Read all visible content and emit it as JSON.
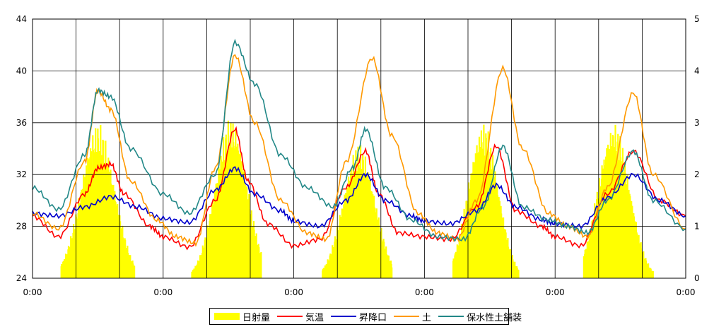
{
  "chart_data": {
    "type": "line",
    "x_ticks": [
      "0:00",
      "0:00",
      "0:00",
      "0:00",
      "0:00",
      "0:00"
    ],
    "y_left": {
      "ticks": [
        24,
        28,
        32,
        36,
        40,
        44
      ],
      "lim": [
        24,
        44
      ]
    },
    "y_right": {
      "ticks": [
        0,
        1,
        2,
        3,
        4,
        5
      ],
      "lim": [
        0,
        5
      ]
    },
    "grid": true,
    "legend_position": "bottom",
    "series": [
      {
        "name": "日射量",
        "kind": "bar",
        "axis": "right",
        "color": "#ffff00",
        "days": [
          {
            "start": 0.22,
            "end": 0.78,
            "peak": 3.0,
            "peak_time": 0.5
          },
          {
            "start": 0.22,
            "end": 0.75,
            "peak": 3.1,
            "peak_time": 0.52
          },
          {
            "start": 0.22,
            "end": 0.75,
            "peak": 2.6,
            "peak_time": 0.5
          },
          {
            "start": 0.22,
            "end": 0.72,
            "peak": 3.0,
            "peak_time": 0.45
          },
          {
            "start": 0.22,
            "end": 0.75,
            "peak": 3.0,
            "peak_time": 0.45
          }
        ]
      },
      {
        "name": "気温",
        "kind": "line",
        "axis": "left",
        "color": "#ff0000",
        "points": [
          [
            0,
            28.8
          ],
          [
            0.2,
            27.2
          ],
          [
            0.4,
            30.5
          ],
          [
            0.5,
            32.5
          ],
          [
            0.6,
            32.8
          ],
          [
            0.7,
            30.5
          ],
          [
            0.9,
            28.0
          ],
          [
            1.0,
            27.2
          ],
          [
            1.2,
            26.4
          ],
          [
            1.4,
            30.0
          ],
          [
            1.55,
            35.5
          ],
          [
            1.65,
            31.5
          ],
          [
            1.8,
            28.2
          ],
          [
            2.0,
            26.5
          ],
          [
            2.2,
            27.0
          ],
          [
            2.4,
            31.0
          ],
          [
            2.55,
            33.8
          ],
          [
            2.65,
            30.5
          ],
          [
            2.8,
            27.5
          ],
          [
            3.0,
            27.2
          ],
          [
            3.2,
            27.0
          ],
          [
            3.4,
            29.5
          ],
          [
            3.55,
            34.2
          ],
          [
            3.7,
            29.2
          ],
          [
            3.9,
            28.0
          ],
          [
            4.0,
            27.2
          ],
          [
            4.2,
            26.5
          ],
          [
            4.4,
            30.5
          ],
          [
            4.6,
            33.8
          ],
          [
            4.8,
            30.0
          ],
          [
            5.0,
            28.8
          ]
        ]
      },
      {
        "name": "昇降口",
        "kind": "line",
        "axis": "left",
        "color": "#0000cc",
        "points": [
          [
            0,
            29.0
          ],
          [
            0.2,
            28.8
          ],
          [
            0.4,
            29.5
          ],
          [
            0.6,
            30.3
          ],
          [
            0.8,
            29.5
          ],
          [
            1.0,
            28.6
          ],
          [
            1.2,
            28.3
          ],
          [
            1.4,
            30.8
          ],
          [
            1.55,
            32.5
          ],
          [
            1.7,
            30.5
          ],
          [
            1.9,
            29.2
          ],
          [
            2.0,
            28.4
          ],
          [
            2.2,
            28.0
          ],
          [
            2.4,
            30.0
          ],
          [
            2.55,
            32.0
          ],
          [
            2.7,
            30.0
          ],
          [
            2.9,
            28.8
          ],
          [
            3.0,
            28.4
          ],
          [
            3.2,
            28.2
          ],
          [
            3.4,
            29.2
          ],
          [
            3.55,
            31.2
          ],
          [
            3.7,
            29.5
          ],
          [
            3.9,
            28.5
          ],
          [
            4.0,
            28.2
          ],
          [
            4.2,
            28.0
          ],
          [
            4.4,
            30.2
          ],
          [
            4.6,
            32.0
          ],
          [
            4.8,
            30.0
          ],
          [
            5.0,
            28.8
          ]
        ]
      },
      {
        "name": "土",
        "kind": "line",
        "axis": "left",
        "color": "#ff9900",
        "points": [
          [
            0,
            29.0
          ],
          [
            0.2,
            27.8
          ],
          [
            0.4,
            33.0
          ],
          [
            0.5,
            38.5
          ],
          [
            0.6,
            37.0
          ],
          [
            0.75,
            31.5
          ],
          [
            0.95,
            28.5
          ],
          [
            1.1,
            27.2
          ],
          [
            1.25,
            26.7
          ],
          [
            1.4,
            32.5
          ],
          [
            1.55,
            41.2
          ],
          [
            1.7,
            36.0
          ],
          [
            1.9,
            30.0
          ],
          [
            2.1,
            27.5
          ],
          [
            2.25,
            27.0
          ],
          [
            2.4,
            33.0
          ],
          [
            2.6,
            41.0
          ],
          [
            2.75,
            35.0
          ],
          [
            2.95,
            29.0
          ],
          [
            3.1,
            27.5
          ],
          [
            3.25,
            27.0
          ],
          [
            3.4,
            30.0
          ],
          [
            3.6,
            40.2
          ],
          [
            3.75,
            34.0
          ],
          [
            3.95,
            29.0
          ],
          [
            4.1,
            28.0
          ],
          [
            4.25,
            27.2
          ],
          [
            4.4,
            31.0
          ],
          [
            4.6,
            38.3
          ],
          [
            4.75,
            32.0
          ],
          [
            5.0,
            27.8
          ]
        ]
      },
      {
        "name": "保水性土舗装",
        "kind": "line",
        "axis": "left",
        "color": "#228888",
        "points": [
          [
            0,
            31.0
          ],
          [
            0.2,
            29.3
          ],
          [
            0.4,
            33.5
          ],
          [
            0.5,
            38.5
          ],
          [
            0.6,
            38.0
          ],
          [
            0.75,
            34.0
          ],
          [
            1.0,
            30.5
          ],
          [
            1.2,
            29.0
          ],
          [
            1.4,
            32.0
          ],
          [
            1.55,
            42.2
          ],
          [
            1.7,
            39.0
          ],
          [
            1.9,
            33.5
          ],
          [
            2.1,
            31.0
          ],
          [
            2.3,
            29.5
          ],
          [
            2.45,
            32.5
          ],
          [
            2.55,
            35.5
          ],
          [
            2.7,
            31.0
          ],
          [
            2.9,
            28.5
          ],
          [
            3.1,
            27.2
          ],
          [
            3.3,
            27.0
          ],
          [
            3.45,
            29.5
          ],
          [
            3.6,
            34.2
          ],
          [
            3.75,
            29.5
          ],
          [
            3.95,
            28.5
          ],
          [
            4.1,
            28.0
          ],
          [
            4.25,
            27.5
          ],
          [
            4.4,
            30.0
          ],
          [
            4.6,
            33.8
          ],
          [
            4.75,
            30.0
          ],
          [
            5.0,
            27.8
          ]
        ]
      }
    ]
  }
}
